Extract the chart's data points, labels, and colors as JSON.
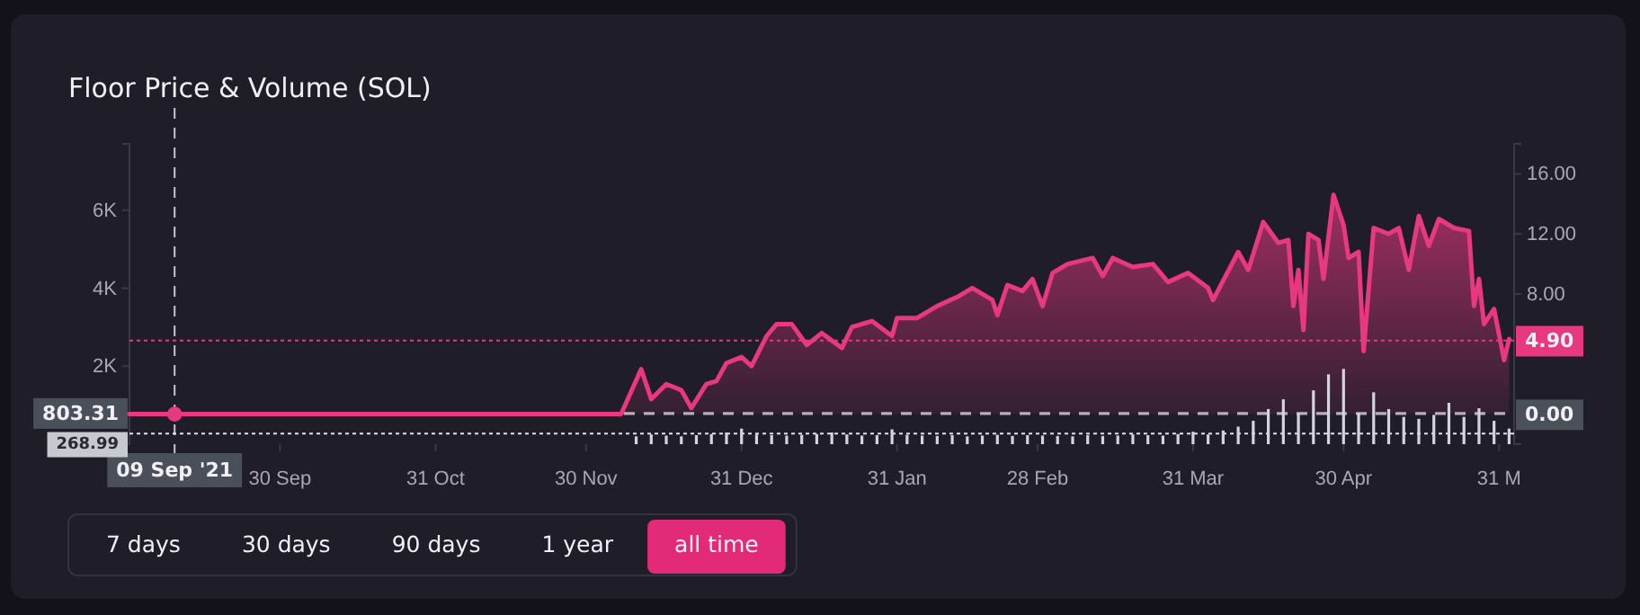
{
  "chart_data": {
    "type": "area",
    "title": "Floor Price & Volume (SOL)",
    "xlim": [
      "2021-08-31",
      "2022-06-03"
    ],
    "xticks": [
      {
        "value": "2021-09-30",
        "label": "30 Sep"
      },
      {
        "value": "2021-10-31",
        "label": "31 Oct"
      },
      {
        "value": "2021-11-30",
        "label": "30 Nov"
      },
      {
        "value": "2021-12-31",
        "label": "31 Dec"
      },
      {
        "value": "2022-01-31",
        "label": "31 Jan"
      },
      {
        "value": "2022-02-28",
        "label": "28 Feb"
      },
      {
        "value": "2022-03-31",
        "label": "31 Mar"
      },
      {
        "value": "2022-04-30",
        "label": "30 Apr"
      },
      {
        "value": "2022-05-31",
        "label": "31 M"
      }
    ],
    "ylim": [
      0,
      7700
    ],
    "yticks": [
      {
        "value": 2000,
        "label": "2K"
      },
      {
        "value": 4000,
        "label": "4K"
      },
      {
        "value": 6000,
        "label": "6K"
      }
    ],
    "y2lim": [
      -2,
      18
    ],
    "y2ticks": [
      {
        "value": 8,
        "label": "8.00"
      },
      {
        "value": 12,
        "label": "12.00"
      },
      {
        "value": 16,
        "label": "16.00"
      }
    ],
    "grid": false,
    "series": [
      {
        "type": "bar",
        "color": "#d4d4dc",
        "x": [
          "2021-12-10",
          "2021-12-13",
          "2021-12-16",
          "2021-12-19",
          "2021-12-22",
          "2021-12-25",
          "2021-12-28",
          "2021-12-31",
          "2022-01-03",
          "2022-01-06",
          "2022-01-09",
          "2022-01-12",
          "2022-01-15",
          "2022-01-18",
          "2022-01-21",
          "2022-01-24",
          "2022-01-27",
          "2022-01-30",
          "2022-02-02",
          "2022-02-05",
          "2022-02-08",
          "2022-02-11",
          "2022-02-14",
          "2022-02-17",
          "2022-02-20",
          "2022-02-23",
          "2022-02-26",
          "2022-03-01",
          "2022-03-04",
          "2022-03-07",
          "2022-03-10",
          "2022-03-13",
          "2022-03-16",
          "2022-03-19",
          "2022-03-22",
          "2022-03-25",
          "2022-03-28",
          "2022-03-31",
          "2022-04-03",
          "2022-04-06",
          "2022-04-09",
          "2022-04-12",
          "2022-04-15",
          "2022-04-18",
          "2022-04-21",
          "2022-04-24",
          "2022-04-27",
          "2022-04-30",
          "2022-05-03",
          "2022-05-06",
          "2022-05-09",
          "2022-05-12",
          "2022-05-15",
          "2022-05-18",
          "2022-05-21",
          "2022-05-24",
          "2022-05-27",
          "2022-05-30",
          "2022-06-02"
        ],
        "values": [
          200,
          250,
          220,
          200,
          230,
          260,
          300,
          400,
          250,
          230,
          220,
          240,
          260,
          300,
          250,
          220,
          230,
          380,
          240,
          220,
          210,
          230,
          200,
          220,
          240,
          210,
          230,
          220,
          210,
          200,
          230,
          210,
          220,
          250,
          230,
          220,
          260,
          320,
          250,
          350,
          450,
          600,
          900,
          1150,
          800,
          1380,
          1790,
          1930,
          800,
          1330,
          900,
          700,
          650,
          750,
          1060,
          700,
          920,
          600,
          400
        ]
      },
      {
        "axis": "y2",
        "color": "#e8387f",
        "x": [
          "2021-08-31",
          "2021-12-07",
          "2021-12-11",
          "2021-12-13",
          "2021-12-16",
          "2021-12-19",
          "2021-12-21",
          "2021-12-24",
          "2021-12-26",
          "2021-12-28",
          "2021-12-31",
          "2022-01-02",
          "2022-01-05",
          "2022-01-07",
          "2022-01-10",
          "2022-01-13",
          "2022-01-16",
          "2022-01-20",
          "2022-01-22",
          "2022-01-26",
          "2022-01-30",
          "2022-01-31",
          "2022-02-04",
          "2022-02-08",
          "2022-02-12",
          "2022-02-15",
          "2022-02-19",
          "2022-02-20",
          "2022-02-22",
          "2022-02-25",
          "2022-02-27",
          "2022-03-01",
          "2022-03-03",
          "2022-03-06",
          "2022-03-11",
          "2022-03-13",
          "2022-03-15",
          "2022-03-19",
          "2022-03-23",
          "2022-03-26",
          "2022-03-30",
          "2022-04-03",
          "2022-04-04",
          "2022-04-09",
          "2022-04-11",
          "2022-04-14",
          "2022-04-17",
          "2022-04-19",
          "2022-04-20",
          "2022-04-21",
          "2022-04-22",
          "2022-04-23",
          "2022-04-25",
          "2022-04-26",
          "2022-04-28",
          "2022-04-30",
          "2022-05-01",
          "2022-05-03",
          "2022-05-04",
          "2022-05-06",
          "2022-05-09",
          "2022-05-11",
          "2022-05-13",
          "2022-05-15",
          "2022-05-17",
          "2022-05-19",
          "2022-05-22",
          "2022-05-25",
          "2022-05-26",
          "2022-05-27",
          "2022-05-28",
          "2022-05-30",
          "2022-06-01",
          "2022-06-02"
        ],
        "values": [
          0,
          0,
          3.0,
          1.0,
          2.0,
          1.6,
          0.4,
          2.0,
          2.2,
          3.4,
          3.8,
          3.2,
          5.2,
          6.0,
          6.0,
          4.6,
          5.4,
          4.4,
          5.8,
          6.2,
          5.2,
          6.4,
          6.4,
          7.2,
          7.8,
          8.4,
          7.6,
          6.6,
          8.6,
          8.2,
          9.0,
          7.2,
          9.4,
          10.0,
          10.4,
          9.2,
          10.4,
          9.8,
          10.0,
          8.8,
          9.4,
          8.4,
          7.6,
          10.8,
          9.6,
          12.8,
          11.4,
          11.6,
          7.2,
          9.6,
          5.6,
          12.0,
          11.6,
          9.0,
          14.6,
          12.6,
          10.4,
          10.8,
          4.2,
          12.4,
          12.0,
          12.4,
          9.6,
          13.2,
          11.2,
          13.0,
          12.4,
          12.2,
          7.2,
          9.0,
          6.0,
          7.0,
          3.6,
          5.0
        ]
      },
      {
        "type": "scatter",
        "axis": "y2",
        "marker": "circle",
        "color": "#e8387f",
        "x": [
          "2021-09-09"
        ],
        "values": [
          0
        ]
      }
    ],
    "ref_lines": [
      {
        "axis": "x",
        "value": "2021-09-09",
        "label": "09 Sep '21",
        "color": "#c8c8d0",
        "line_style": "dashed"
      },
      {
        "axis": "y",
        "value": 803.31,
        "label": "803.31",
        "color": "#b8b8c0",
        "line_style": "dashed"
      },
      {
        "axis": "y2",
        "value": 0,
        "label": "0.00",
        "color": "#b8b8c0",
        "line_style": "dashed"
      },
      {
        "axis": "y",
        "value": 268.99,
        "label": "268.99",
        "color": "#e0e0e8",
        "line_style": "dotted"
      },
      {
        "axis": "y2",
        "value": 4.9,
        "label": "4.90",
        "color": "#e8387f",
        "line_style": "dotted"
      }
    ],
    "annotations": [
      "7 days",
      "30 days",
      "90 days",
      "1 year",
      "all time"
    ]
  }
}
